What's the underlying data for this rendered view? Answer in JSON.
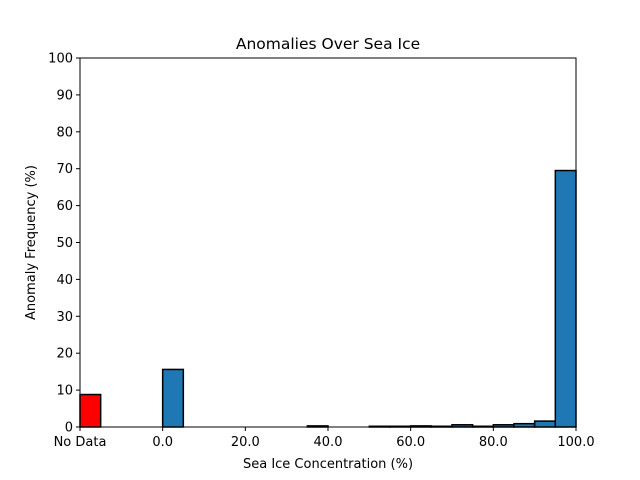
{
  "chart_data": {
    "type": "bar",
    "title": "Anomalies Over Sea Ice",
    "xlabel": "Sea Ice Concentration (%)",
    "ylabel": "Anomaly Frequency (%)",
    "ylim": [
      0,
      100
    ],
    "yticks": [
      "0",
      "10",
      "20",
      "30",
      "40",
      "50",
      "60",
      "70",
      "80",
      "90",
      "100"
    ],
    "xlim": [
      -20,
      100
    ],
    "xticks": [
      {
        "value": -20,
        "label": "No Data"
      },
      {
        "value": 0,
        "label": "0.0"
      },
      {
        "value": 20,
        "label": "20.0"
      },
      {
        "value": 40,
        "label": "40.0"
      },
      {
        "value": 60,
        "label": "60.0"
      },
      {
        "value": 80,
        "label": "80.0"
      },
      {
        "value": 100,
        "label": "100.0"
      }
    ],
    "grid": false,
    "bar_width": 5,
    "series": [
      {
        "color": "#ff0000",
        "bars": [
          {
            "x": -20,
            "value": 8.8
          }
        ]
      },
      {
        "color": "#1f77b4",
        "bars": [
          {
            "x": -15,
            "value": 0.0
          },
          {
            "x": -10,
            "value": 0.0
          },
          {
            "x": -5,
            "value": 0.0
          },
          {
            "x": 0,
            "value": 15.6
          },
          {
            "x": 5,
            "value": 0.0
          },
          {
            "x": 10,
            "value": 0.0
          },
          {
            "x": 15,
            "value": 0.0
          },
          {
            "x": 20,
            "value": 0.0
          },
          {
            "x": 25,
            "value": 0.0
          },
          {
            "x": 30,
            "value": 0.0
          },
          {
            "x": 35,
            "value": 0.3
          },
          {
            "x": 40,
            "value": 0.0
          },
          {
            "x": 45,
            "value": 0.0
          },
          {
            "x": 50,
            "value": 0.2
          },
          {
            "x": 55,
            "value": 0.2
          },
          {
            "x": 60,
            "value": 0.3
          },
          {
            "x": 65,
            "value": 0.2
          },
          {
            "x": 70,
            "value": 0.6
          },
          {
            "x": 75,
            "value": 0.2
          },
          {
            "x": 80,
            "value": 0.6
          },
          {
            "x": 85,
            "value": 0.9
          },
          {
            "x": 90,
            "value": 1.6
          },
          {
            "x": 95,
            "value": 69.5
          }
        ]
      }
    ]
  }
}
